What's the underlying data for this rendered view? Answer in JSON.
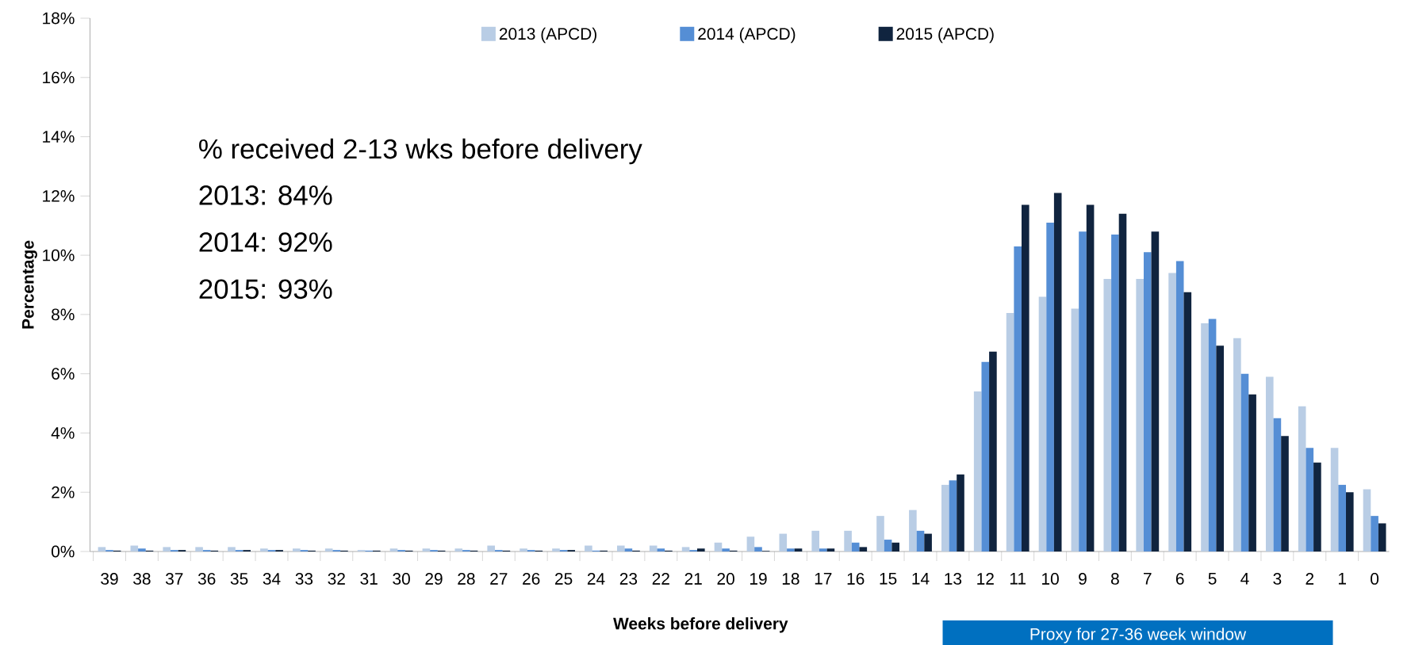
{
  "chart_data": {
    "type": "bar",
    "xlabel": "Weeks before delivery",
    "ylabel": "Percentage",
    "categories": [
      "39",
      "38",
      "37",
      "36",
      "35",
      "34",
      "33",
      "32",
      "31",
      "30",
      "29",
      "28",
      "27",
      "26",
      "25",
      "24",
      "23",
      "22",
      "21",
      "20",
      "19",
      "18",
      "17",
      "16",
      "15",
      "14",
      "13",
      "12",
      "11",
      "10",
      "9",
      "8",
      "7",
      "6",
      "5",
      "4",
      "3",
      "2",
      "1",
      "0"
    ],
    "series": [
      {
        "name": "2013 (APCD)",
        "color": "#b9cde5",
        "values": [
          0.15,
          0.2,
          0.15,
          0.15,
          0.15,
          0.1,
          0.1,
          0.1,
          0.05,
          0.1,
          0.1,
          0.1,
          0.2,
          0.1,
          0.1,
          0.2,
          0.2,
          0.2,
          0.15,
          0.3,
          0.5,
          0.6,
          0.7,
          0.7,
          1.2,
          1.4,
          2.25,
          5.4,
          8.05,
          8.6,
          8.2,
          9.2,
          9.2,
          9.4,
          7.7,
          7.2,
          5.9,
          4.9,
          3.5,
          2.1
        ]
      },
      {
        "name": "2014 (APCD)",
        "color": "#558ed5",
        "values": [
          0.05,
          0.1,
          0.05,
          0.05,
          0.05,
          0.05,
          0.05,
          0.05,
          0.03,
          0.05,
          0.05,
          0.05,
          0.05,
          0.05,
          0.05,
          0.03,
          0.1,
          0.1,
          0.05,
          0.1,
          0.15,
          0.1,
          0.1,
          0.3,
          0.4,
          0.7,
          2.4,
          6.4,
          10.3,
          11.1,
          10.8,
          10.7,
          10.1,
          9.8,
          7.85,
          6.0,
          4.5,
          3.5,
          2.25,
          1.2
        ]
      },
      {
        "name": "2015 (APCD)",
        "color": "#10243f",
        "values": [
          0.03,
          0.03,
          0.05,
          0.03,
          0.05,
          0.05,
          0.03,
          0.03,
          0.03,
          0.03,
          0.03,
          0.03,
          0.03,
          0.03,
          0.05,
          0.03,
          0.03,
          0.03,
          0.1,
          0.03,
          0.02,
          0.1,
          0.1,
          0.15,
          0.3,
          0.6,
          2.6,
          6.75,
          11.7,
          12.1,
          11.7,
          11.4,
          10.8,
          8.75,
          6.95,
          5.3,
          3.9,
          3.0,
          2.0,
          0.95
        ]
      }
    ],
    "ylim": [
      0,
      18
    ],
    "yticks": [
      {
        "value": 0,
        "label": "0%"
      },
      {
        "value": 2,
        "label": "2%"
      },
      {
        "value": 4,
        "label": "4%"
      },
      {
        "value": 6,
        "label": "6%"
      },
      {
        "value": 8,
        "label": "8%"
      },
      {
        "value": 10,
        "label": "10%"
      },
      {
        "value": 12,
        "label": "12%"
      },
      {
        "value": 14,
        "label": "14%"
      },
      {
        "value": 16,
        "label": "16%"
      },
      {
        "value": 18,
        "label": "18%"
      }
    ],
    "grid": false,
    "legend": "top",
    "annotations": [
      "% received 2-13 wks before delivery",
      "2013:   84%",
      "2014:   92%",
      "2015:   93%",
      "Proxy for 27-36 week window"
    ]
  }
}
